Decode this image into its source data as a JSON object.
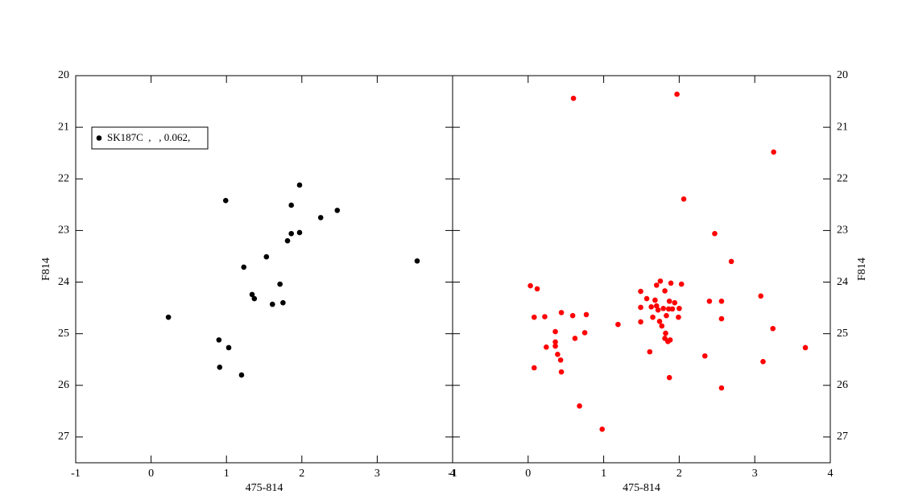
{
  "chart_data": [
    {
      "type": "scatter",
      "xlabel": "475-814",
      "ylabel": "F814",
      "xlim": [
        -1,
        4
      ],
      "ylim": [
        27.5,
        20
      ],
      "xticks": [
        -1,
        0,
        1,
        2,
        3,
        4
      ],
      "yticks": [
        20,
        21,
        22,
        23,
        24,
        25,
        26,
        27
      ],
      "yaxis_side": "left",
      "legend": "upper left",
      "series": [
        {
          "name": "SK187C  ,   , 0.062,",
          "color": "#000000",
          "x": [
            0.99,
            1.97,
            1.86,
            2.47,
            2.25,
            1.86,
            1.97,
            1.81,
            1.53,
            3.53,
            1.23,
            1.71,
            1.34,
            1.37,
            1.75,
            1.61,
            0.23,
            0.9,
            1.03,
            0.91,
            1.2
          ],
          "values": [
            22.42,
            22.12,
            22.51,
            22.61,
            22.75,
            23.06,
            23.04,
            23.2,
            23.51,
            23.59,
            23.71,
            24.04,
            24.24,
            24.32,
            24.4,
            24.43,
            24.68,
            25.12,
            25.27,
            25.65,
            25.8
          ]
        }
      ]
    },
    {
      "type": "scatter",
      "xlabel": "475-814",
      "ylabel": "F814",
      "xlim": [
        -1,
        4
      ],
      "ylim": [
        27.5,
        20
      ],
      "xticks": [
        -1,
        0,
        1,
        2,
        3,
        4
      ],
      "yticks": [
        20,
        21,
        22,
        23,
        24,
        25,
        26,
        27
      ],
      "yaxis_side": "right",
      "series": [
        {
          "color": "#ff0000",
          "x": [
            0.6,
            1.97,
            3.25,
            2.06,
            2.47,
            2.69,
            3.08,
            3.24,
            3.67,
            3.11,
            2.56,
            2.56,
            2.4,
            2.56,
            2.34,
            1.87,
            1.61,
            0.98,
            0.68,
            0.44,
            0.08,
            0.03,
            0.12,
            0.08,
            0.22,
            0.44,
            0.59,
            0.77,
            0.75,
            0.62,
            0.36,
            0.36,
            0.36,
            0.24,
            0.39,
            0.43,
            1.19,
            1.49,
            1.49,
            1.49,
            1.57,
            1.63,
            1.68,
            1.75,
            1.7,
            1.7,
            1.72,
            1.65,
            1.74,
            1.79,
            1.81,
            1.87,
            1.89,
            1.83,
            1.86,
            1.91,
            1.77,
            1.82,
            1.81,
            1.85,
            1.88,
            2.03,
            2.0,
            1.94,
            1.99
          ],
          "values": [
            20.44,
            20.36,
            21.48,
            22.39,
            23.06,
            23.6,
            24.27,
            24.9,
            25.27,
            25.54,
            26.05,
            24.37,
            24.37,
            24.71,
            25.43,
            25.85,
            25.35,
            26.85,
            26.4,
            25.74,
            25.66,
            24.07,
            24.13,
            24.68,
            24.67,
            24.59,
            24.65,
            24.63,
            24.98,
            25.09,
            24.96,
            25.16,
            25.24,
            25.26,
            25.4,
            25.51,
            24.82,
            24.18,
            24.49,
            24.77,
            24.32,
            24.48,
            24.35,
            23.98,
            24.06,
            24.46,
            24.54,
            24.68,
            24.76,
            24.51,
            24.17,
            24.37,
            24.02,
            24.65,
            24.52,
            24.52,
            24.85,
            24.99,
            25.09,
            25.15,
            25.12,
            24.04,
            24.51,
            24.4,
            24.68
          ]
        }
      ]
    }
  ]
}
